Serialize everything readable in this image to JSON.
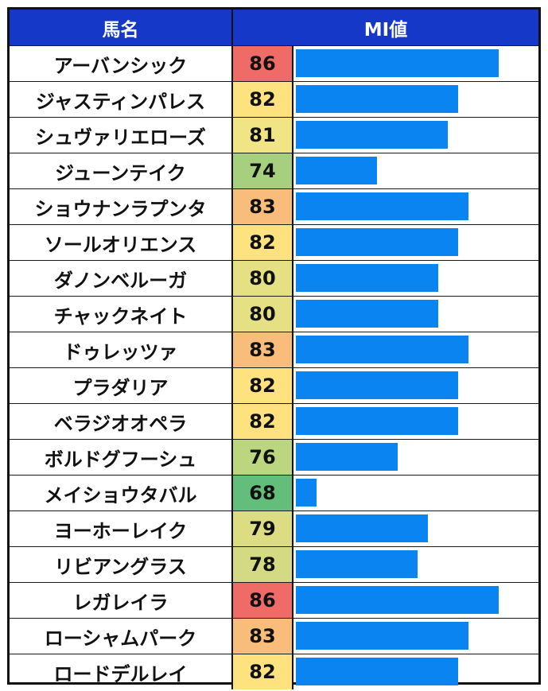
{
  "header": {
    "name_label": "馬名",
    "value_label": "MI値"
  },
  "colors": {
    "header_bg": "#1638c8",
    "bar": "#0a84f0",
    "value_scale": {
      "86": "#ef6b67",
      "83": "#f8bd7a",
      "82": "#fde27f",
      "81": "#f1e485",
      "80": "#e5e083",
      "79": "#dcdd83",
      "78": "#d3da83",
      "76": "#bcd680",
      "74": "#a6d07d",
      "68": "#63bd7b"
    }
  },
  "chart_data": {
    "type": "bar",
    "orientation": "horizontal",
    "categories": [
      "アーバンシック",
      "ジャスティンパレス",
      "シュヴァリエローズ",
      "ジューンテイク",
      "ショウナンラプンタ",
      "ソールオリエンス",
      "ダノンベルーガ",
      "チャックネイト",
      "ドゥレッツァ",
      "プラダリア",
      "ベラジオオペラ",
      "ボルドグフーシュ",
      "メイショウタバル",
      "ヨーホーレイク",
      "リビアングラス",
      "レガレイラ",
      "ローシャムパーク",
      "ロードデルレイ"
    ],
    "values": [
      86,
      82,
      81,
      74,
      83,
      82,
      80,
      80,
      83,
      82,
      82,
      76,
      68,
      79,
      78,
      86,
      83,
      82
    ],
    "xlim": [
      66,
      86
    ],
    "grid": false,
    "legend": "none"
  }
}
